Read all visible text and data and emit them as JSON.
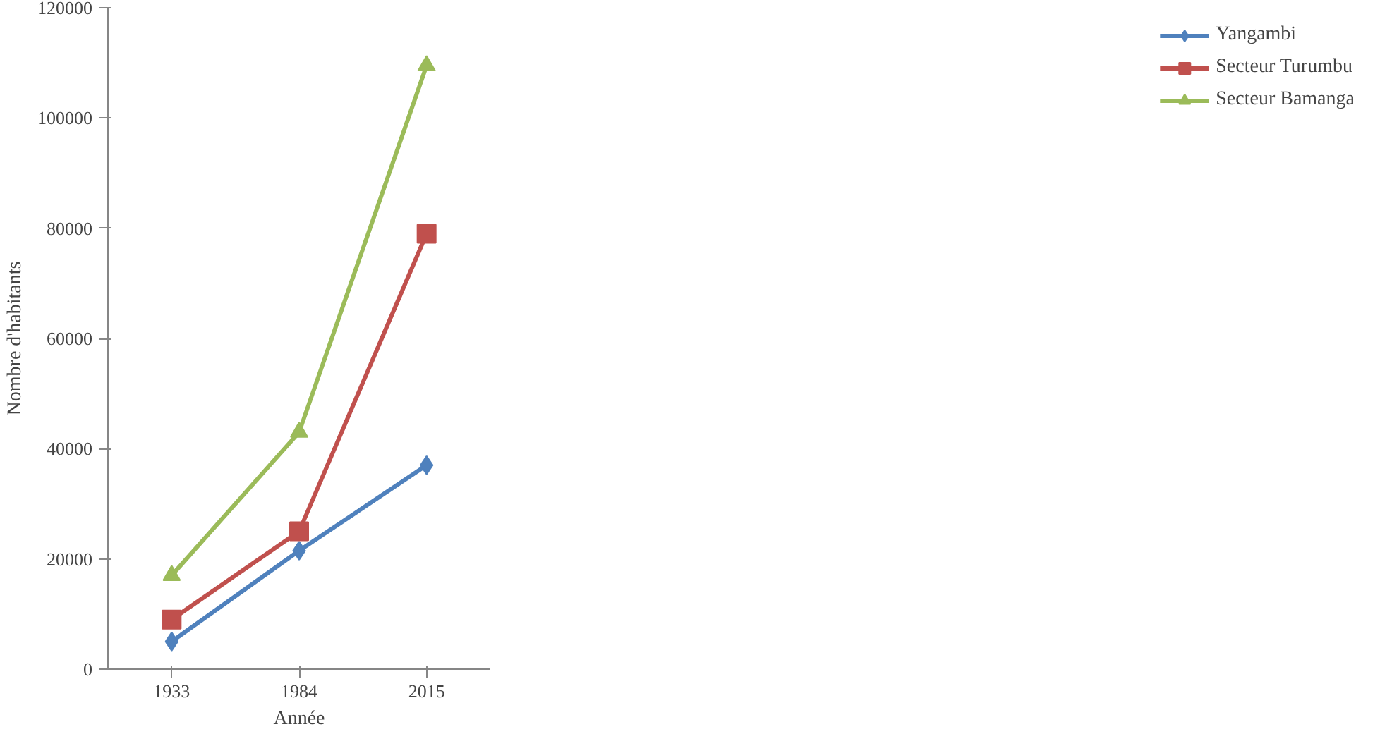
{
  "chart_data": {
    "type": "line",
    "xlabel": "Année",
    "ylabel": "Nombre d'habitants",
    "categories": [
      "1933",
      "1984",
      "2015"
    ],
    "ylim": [
      0,
      120000
    ],
    "yticks": [
      0,
      20000,
      40000,
      60000,
      80000,
      100000,
      120000
    ],
    "grid": false,
    "legend": "right",
    "line_style": "solid",
    "series": [
      {
        "name": "Yangambi",
        "color": "#4f81bd",
        "marker": "diamond",
        "values": [
          5000,
          21500,
          37000
        ]
      },
      {
        "name": "Secteur Turumbu",
        "color": "#c0504d",
        "marker": "square",
        "values": [
          9000,
          25000,
          79000
        ]
      },
      {
        "name": "Secteur Bamanga",
        "color": "#9bbb59",
        "marker": "triangle",
        "values": [
          17000,
          43000,
          109500
        ]
      }
    ]
  }
}
